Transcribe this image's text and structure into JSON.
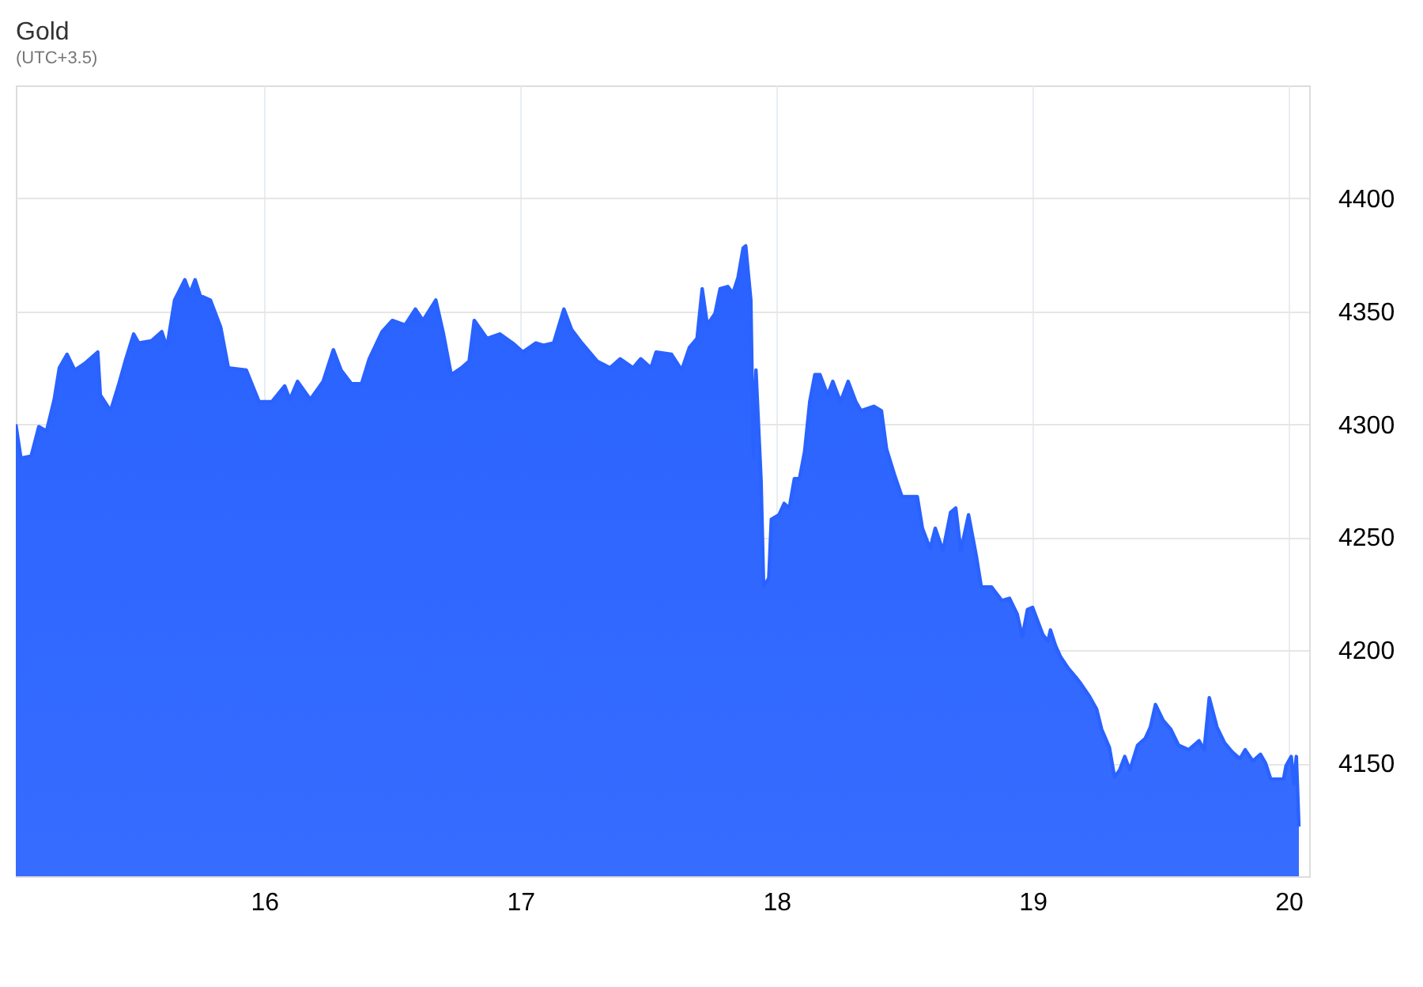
{
  "chart_data": {
    "type": "area",
    "title": "Gold",
    "subtitle": "(UTC+3.5)",
    "xlim": [
      15.03,
      20.08
    ],
    "xticks": [
      16,
      17,
      18,
      19,
      20
    ],
    "ylim": [
      4100,
      4450
    ],
    "yticks": [
      4150,
      4200,
      4250,
      4300,
      4350,
      4400
    ],
    "grid": true,
    "series": [
      {
        "color": "#2962ff",
        "x": [
          15.03,
          15.05,
          15.09,
          15.12,
          15.15,
          15.18,
          15.2,
          15.23,
          15.26,
          15.3,
          15.35,
          15.36,
          15.4,
          15.43,
          15.46,
          15.49,
          15.51,
          15.56,
          15.6,
          15.62,
          15.65,
          15.69,
          15.71,
          15.73,
          15.75,
          15.79,
          15.83,
          15.86,
          15.93,
          15.98,
          16.03,
          16.08,
          16.1,
          16.13,
          16.18,
          16.23,
          16.27,
          16.3,
          16.34,
          16.38,
          16.41,
          16.46,
          16.5,
          16.55,
          16.59,
          16.62,
          16.67,
          16.7,
          16.73,
          16.77,
          16.8,
          16.82,
          16.87,
          16.92,
          16.97,
          17.01,
          17.06,
          17.09,
          17.13,
          17.17,
          17.2,
          17.24,
          17.3,
          17.35,
          17.39,
          17.44,
          17.47,
          17.51,
          17.53,
          17.59,
          17.63,
          17.66,
          17.69,
          17.71,
          17.73,
          17.76,
          17.78,
          17.81,
          17.83,
          17.85,
          17.87,
          17.88,
          17.9,
          17.91,
          17.92,
          17.94,
          17.95,
          17.97,
          17.98,
          18.01,
          18.03,
          18.05,
          18.07,
          18.09,
          18.11,
          18.13,
          18.15,
          18.17,
          18.2,
          18.22,
          18.25,
          18.28,
          18.31,
          18.33,
          18.38,
          18.41,
          18.43,
          18.46,
          18.49,
          18.55,
          18.57,
          18.6,
          18.62,
          18.65,
          18.68,
          18.7,
          18.72,
          18.75,
          18.78,
          18.8,
          18.84,
          18.88,
          18.91,
          18.94,
          18.96,
          18.98,
          19.0,
          19.04,
          19.06,
          19.07,
          19.09,
          19.11,
          19.14,
          19.17,
          19.19,
          19.22,
          19.25,
          19.27,
          19.3,
          19.32,
          19.34,
          19.36,
          19.38,
          19.41,
          19.44,
          19.46,
          19.48,
          19.51,
          19.54,
          19.57,
          19.61,
          19.65,
          19.67,
          19.69,
          19.72,
          19.75,
          19.78,
          19.81,
          19.83,
          19.86,
          19.89,
          19.91,
          19.93,
          19.98,
          19.99,
          20.01,
          20.02,
          20.03,
          20.04
        ],
        "values": [
          4300,
          4285,
          4286,
          4299,
          4297,
          4311,
          4325,
          4331,
          4324,
          4327,
          4332,
          4313,
          4306,
          4317,
          4329,
          4340,
          4336,
          4337,
          4341,
          4334,
          4355,
          4364,
          4358,
          4364,
          4357,
          4355,
          4343,
          4325,
          4324,
          4310,
          4310,
          4317,
          4311,
          4319,
          4311,
          4319,
          4333,
          4324,
          4318,
          4318,
          4329,
          4341,
          4346,
          4344,
          4351,
          4346,
          4355,
          4340,
          4322,
          4325,
          4328,
          4346,
          4338,
          4340,
          4336,
          4332,
          4336,
          4335,
          4336,
          4351,
          4342,
          4336,
          4328,
          4325,
          4329,
          4325,
          4329,
          4325,
          4332,
          4331,
          4324,
          4334,
          4338,
          4360,
          4344,
          4349,
          4360,
          4361,
          4358,
          4365,
          4378,
          4379,
          4355,
          4285,
          4324,
          4275,
          4228,
          4232,
          4258,
          4260,
          4265,
          4263,
          4276,
          4276,
          4288,
          4310,
          4322,
          4322,
          4313,
          4319,
          4310,
          4319,
          4310,
          4306,
          4308,
          4306,
          4289,
          4278,
          4268,
          4268,
          4254,
          4245,
          4254,
          4244,
          4261,
          4263,
          4244,
          4260,
          4242,
          4228,
          4228,
          4222,
          4223,
          4216,
          4206,
          4218,
          4219,
          4207,
          4204,
          4209,
          4202,
          4197,
          4192,
          4188,
          4185,
          4180,
          4174,
          4165,
          4157,
          4144,
          4147,
          4153,
          4147,
          4158,
          4161,
          4166,
          4176,
          4169,
          4165,
          4158,
          4156,
          4160,
          4156,
          4179,
          4166,
          4159,
          4155,
          4152,
          4156,
          4151,
          4154,
          4150,
          4143,
          4143,
          4149,
          4153,
          4141,
          4153,
          4122
        ]
      }
    ]
  }
}
